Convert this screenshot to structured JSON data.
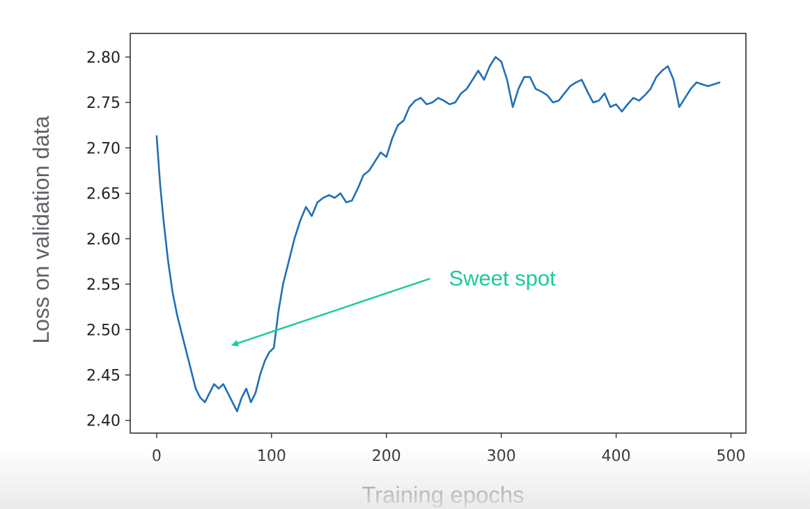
{
  "chart_data": {
    "type": "line",
    "xlabel": "Training epochs",
    "ylabel": "Loss on validation data",
    "xlim": [
      -23,
      513
    ],
    "ylim": [
      2.386,
      2.826
    ],
    "xticks": [
      0,
      100,
      200,
      300,
      400,
      500
    ],
    "xtick_labels": [
      "0",
      "100",
      "200",
      "300",
      "400",
      "500"
    ],
    "yticks": [
      2.4,
      2.45,
      2.5,
      2.55,
      2.6,
      2.65,
      2.7,
      2.75,
      2.8
    ],
    "ytick_labels": [
      "2.40",
      "2.45",
      "2.50",
      "2.55",
      "2.60",
      "2.65",
      "2.70",
      "2.75",
      "2.80"
    ],
    "grid": false,
    "series": [
      {
        "color": "#1f6fb7",
        "x": [
          0,
          3,
          6,
          10,
          14,
          18,
          22,
          26,
          30,
          34,
          38,
          42,
          46,
          50,
          54,
          58,
          62,
          66,
          70,
          74,
          78,
          82,
          86,
          90,
          94,
          98,
          102,
          106,
          110,
          115,
          120,
          125,
          130,
          135,
          140,
          145,
          150,
          155,
          160,
          165,
          170,
          175,
          180,
          185,
          190,
          195,
          200,
          205,
          210,
          215,
          220,
          225,
          230,
          235,
          240,
          245,
          250,
          255,
          260,
          265,
          270,
          275,
          280,
          285,
          290,
          295,
          300,
          305,
          310,
          315,
          320,
          325,
          330,
          335,
          340,
          345,
          350,
          355,
          360,
          365,
          370,
          375,
          380,
          385,
          390,
          395,
          400,
          405,
          410,
          415,
          420,
          425,
          430,
          435,
          440,
          445,
          450,
          455,
          460,
          465,
          470,
          475,
          480,
          485,
          490
        ],
        "y": [
          2.713,
          2.66,
          2.62,
          2.575,
          2.54,
          2.515,
          2.495,
          2.475,
          2.455,
          2.435,
          2.425,
          2.42,
          2.43,
          2.44,
          2.435,
          2.44,
          2.43,
          2.42,
          2.41,
          2.425,
          2.435,
          2.42,
          2.43,
          2.45,
          2.465,
          2.475,
          2.48,
          2.52,
          2.55,
          2.575,
          2.6,
          2.62,
          2.635,
          2.625,
          2.64,
          2.645,
          2.648,
          2.645,
          2.65,
          2.64,
          2.642,
          2.655,
          2.67,
          2.675,
          2.685,
          2.695,
          2.69,
          2.71,
          2.725,
          2.73,
          2.745,
          2.752,
          2.755,
          2.748,
          2.75,
          2.755,
          2.752,
          2.748,
          2.75,
          2.76,
          2.765,
          2.775,
          2.785,
          2.775,
          2.79,
          2.8,
          2.795,
          2.775,
          2.745,
          2.765,
          2.778,
          2.778,
          2.765,
          2.762,
          2.758,
          2.75,
          2.752,
          2.76,
          2.768,
          2.772,
          2.775,
          2.762,
          2.75,
          2.752,
          2.76,
          2.745,
          2.748,
          2.74,
          2.748,
          2.755,
          2.752,
          2.758,
          2.765,
          2.778,
          2.785,
          2.79,
          2.775,
          2.745,
          2.755,
          2.765,
          2.772,
          2.77,
          2.768,
          2.77,
          2.772
        ]
      }
    ],
    "annotations": [
      {
        "text": "Sweet spot",
        "color": "#1cc9a0",
        "arrow_from": [
          238,
          2.556
        ],
        "arrow_to": [
          66,
          2.483
        ]
      }
    ]
  }
}
